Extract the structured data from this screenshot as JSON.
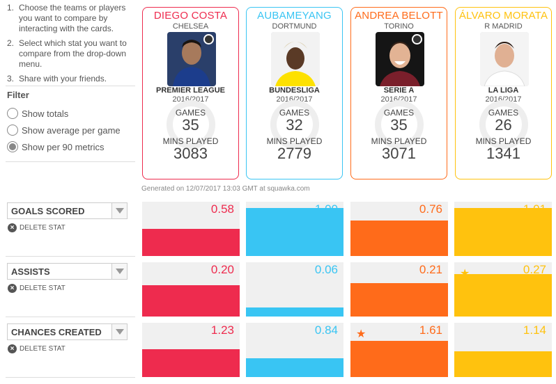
{
  "instructions": [
    {
      "num": "1.",
      "text": "Choose the teams or players you want to compare by interacting with the cards."
    },
    {
      "num": "2.",
      "text": "Select which stat you want to compare from the drop-down menu."
    },
    {
      "num": "3.",
      "text": "Share with your friends."
    }
  ],
  "filter": {
    "title": "Filter",
    "options": [
      {
        "label": "Show totals",
        "selected": false
      },
      {
        "label": "Show average per game",
        "selected": false
      },
      {
        "label": "Show per 90 metrics",
        "selected": true
      }
    ]
  },
  "players": [
    {
      "name": "DIEGO COSTA",
      "club": "CHELSEA",
      "league": "PREMIER LEAGUE",
      "season": "2016/2017",
      "games_label": "GAMES",
      "games": "35",
      "mins_label": "MINS PLAYED",
      "mins": "3083",
      "color": "#ee2b4e"
    },
    {
      "name": "AUBAMEYANG",
      "club": "DORTMUND",
      "league": "BUNDESLIGA",
      "season": "2016/2017",
      "games_label": "GAMES",
      "games": "32",
      "mins_label": "MINS PLAYED",
      "mins": "2779",
      "color": "#39c5f3"
    },
    {
      "name": "ANDREA BELOTT",
      "club": "TORINO",
      "league": "SERIE A",
      "season": "2016/2017",
      "games_label": "GAMES",
      "games": "35",
      "mins_label": "MINS PLAYED",
      "mins": "3071",
      "color": "#ff6b1a"
    },
    {
      "name": "ÁLVARO MORATA",
      "club": "R MADRID",
      "league": "LA LIGA",
      "season": "2016/2017",
      "games_label": "GAMES",
      "games": "26",
      "mins_label": "MINS PLAYED",
      "mins": "1341",
      "color": "#ffc20e"
    }
  ],
  "generated": "Generated on 12/07/2017 13:03 GMT at squawka.com",
  "delete_label": "DELETE STAT",
  "stats": [
    {
      "label": "GOALS SCORED",
      "values": [
        "0.58",
        "1.00",
        "0.76",
        "1.01"
      ],
      "fill": [
        0.5,
        0.88,
        0.66,
        0.88
      ],
      "best": 3
    },
    {
      "label": "ASSISTS",
      "values": [
        "0.20",
        "0.06",
        "0.21",
        "0.27"
      ],
      "fill": [
        0.58,
        0.17,
        0.61,
        0.78
      ],
      "best": 3
    },
    {
      "label": "CHANCES CREATED",
      "values": [
        "1.23",
        "0.84",
        "1.61",
        "1.14"
      ],
      "fill": [
        0.51,
        0.35,
        0.67,
        0.47
      ],
      "best": 2
    }
  ],
  "icons": {
    "dropdown": "chevron-down-icon",
    "delete": "close-circle-icon",
    "best": "star-icon",
    "club": "club-badge-icon"
  }
}
